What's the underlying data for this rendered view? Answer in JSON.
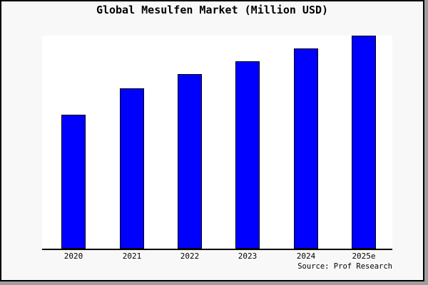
{
  "chart_data": {
    "type": "bar",
    "title": "Global Mesulfen Market (Million USD)",
    "categories": [
      "2020",
      "2021",
      "2022",
      "2023",
      "2024",
      "2025e"
    ],
    "values_pct_of_max": [
      63,
      75.3,
      82,
      88,
      94,
      100
    ],
    "xlabel": "",
    "ylabel": "",
    "ylim": [
      0,
      100
    ],
    "grid": false,
    "legend": null,
    "y_axis_visible": false,
    "source": "Source: Prof Research",
    "bar_color": "#0000ff",
    "bar_border_color": "#000000"
  },
  "colors": {
    "page_background": "#f8f8f8",
    "plot_background": "#ffffff",
    "axis": "#000000",
    "text": "#000000",
    "frame_border": "#000000",
    "frame_shadow": "#9e9e9e"
  }
}
